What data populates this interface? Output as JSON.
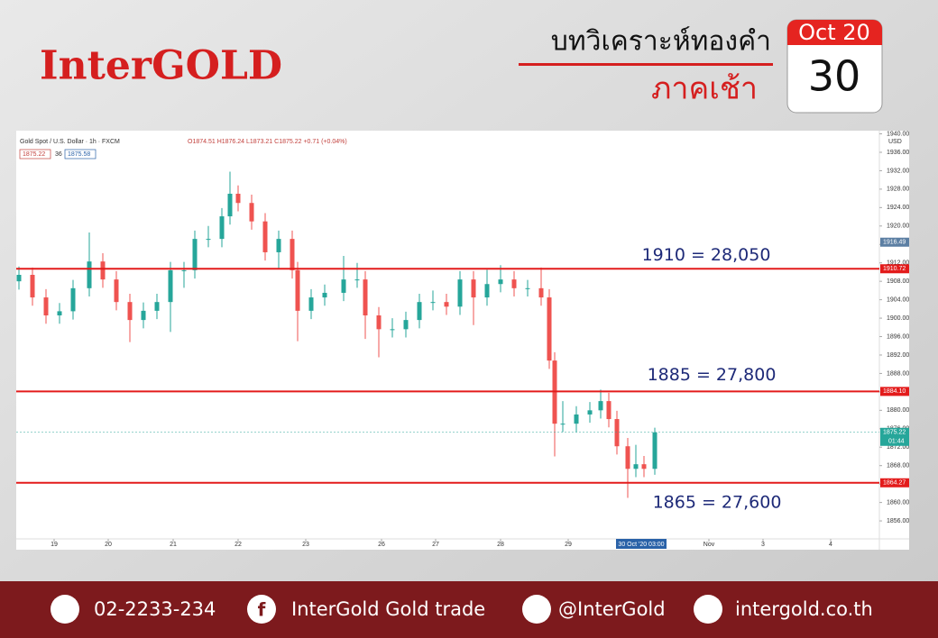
{
  "header": {
    "logo": "InterGOLD",
    "title": "บทวิเคราะห์ทองคำ",
    "subtitle": "ภาคเช้า",
    "calendar_month": "Oct 20",
    "calendar_day": "30"
  },
  "chart_data": {
    "type": "candlestick",
    "title": "Gold Spot / U.S. Dollar · 1h · FXCM",
    "ohlc_text": "O1874.51 H1876.24 L1873.21 C1875.22 +0.71 (+0.04%)",
    "badges": [
      "1875.22",
      "36",
      "1875.58"
    ],
    "currency": "USD",
    "up_color": "#26a69a",
    "down_color": "#ef5350",
    "x": [
      1,
      6,
      11,
      16,
      21,
      27,
      32,
      37,
      42,
      47,
      52,
      57,
      62,
      66,
      71,
      76,
      79,
      82,
      87,
      92,
      97,
      102,
      104,
      109,
      114,
      121,
      126,
      129,
      134,
      139,
      144,
      149,
      154,
      159,
      164,
      169,
      174,
      179,
      184,
      189,
      194,
      197,
      199,
      202,
      207,
      212,
      216,
      219,
      222,
      226,
      229,
      232,
      236
    ],
    "open": [
      1908.0,
      1909.4,
      1904.5,
      1900.6,
      1901.5,
      1906.5,
      1912.3,
      1908.4,
      1903.5,
      1899.6,
      1901.6,
      1903.5,
      1910.4,
      1910.4,
      1917.2,
      1917.2,
      1922.1,
      1927.0,
      1925.0,
      1921.0,
      1914.3,
      1917.2,
      1910.4,
      1901.6,
      1904.5,
      1905.5,
      1908.4,
      1908.4,
      1900.6,
      1897.6,
      1897.6,
      1899.6,
      1903.5,
      1903.5,
      1902.5,
      1908.4,
      1904.5,
      1907.4,
      1908.4,
      1906.5,
      1906.5,
      1904.5,
      1890.8,
      1877.1,
      1877.1,
      1879.1,
      1880.0,
      1882.0,
      1878.1,
      1872.2,
      1867.3,
      1868.3,
      1867.3
    ],
    "high": [
      1911.2,
      1911.0,
      1906.3,
      1903.3,
      1908.3,
      1918.6,
      1914.1,
      1910.2,
      1905.3,
      1903.4,
      1905.3,
      1912.2,
      1912.2,
      1919.0,
      1920.0,
      1923.9,
      1931.8,
      1928.8,
      1926.8,
      1922.8,
      1919.0,
      1919.0,
      1912.2,
      1906.3,
      1907.3,
      1913.5,
      1912.0,
      1910.2,
      1902.4,
      1900.0,
      1901.4,
      1905.3,
      1906.0,
      1905.3,
      1910.2,
      1910.2,
      1910.5,
      1911.5,
      1910.2,
      1908.3,
      1911.0,
      1906.3,
      1892.6,
      1882.0,
      1880.9,
      1881.8,
      1884.5,
      1883.8,
      1879.9,
      1874.0,
      1872.5,
      1870.1,
      1876.24
    ],
    "low": [
      1906.2,
      1902.7,
      1898.8,
      1898.8,
      1899.7,
      1904.7,
      1906.6,
      1901.7,
      1894.8,
      1897.8,
      1899.8,
      1897.0,
      1906.6,
      1908.6,
      1915.4,
      1915.4,
      1920.3,
      1923.2,
      1919.2,
      1912.5,
      1910.6,
      1908.6,
      1895.0,
      1899.8,
      1902.7,
      1903.7,
      1906.6,
      1895.5,
      1891.5,
      1895.8,
      1895.8,
      1897.8,
      1901.7,
      1900.7,
      1900.7,
      1898.5,
      1902.7,
      1905.6,
      1904.7,
      1904.7,
      1902.7,
      1889.0,
      1870.0,
      1875.3,
      1875.3,
      1877.3,
      1878.2,
      1876.3,
      1870.4,
      1861.0,
      1865.5,
      1865.5,
      1866.0
    ],
    "close": [
      1909.4,
      1904.5,
      1900.6,
      1901.5,
      1906.5,
      1912.3,
      1908.4,
      1903.5,
      1899.6,
      1901.6,
      1903.5,
      1910.4,
      1910.4,
      1917.2,
      1917.2,
      1922.1,
      1927.0,
      1925.0,
      1921.0,
      1914.3,
      1917.2,
      1910.4,
      1901.6,
      1904.5,
      1905.5,
      1908.4,
      1908.4,
      1900.6,
      1897.6,
      1897.6,
      1899.6,
      1903.5,
      1903.5,
      1902.5,
      1908.4,
      1904.5,
      1907.4,
      1908.4,
      1906.5,
      1906.5,
      1904.5,
      1890.8,
      1877.1,
      1877.1,
      1879.1,
      1880.0,
      1882.0,
      1878.1,
      1872.2,
      1867.3,
      1868.3,
      1867.3,
      1875.22
    ],
    "levels": [
      1910.72,
      {
        "value": 1884.1,
        "label": "1884.10"
      },
      1864.27
    ],
    "level_color": "#e31b1b",
    "level_notes": [
      "1910 = 28,050",
      "1885 = 27,800",
      "1865 = 27,600"
    ],
    "price_marks": [
      1916.49,
      1875.22
    ],
    "countdown": "01:44",
    "crosshair": {
      "value": 231,
      "label": "30 Oct '20  03:00"
    },
    "xlim": [
      0,
      319
    ],
    "xticks": [
      {
        "value": 14,
        "label": "19"
      },
      {
        "value": 34,
        "label": "20"
      },
      {
        "value": 58,
        "label": "21"
      },
      {
        "value": 82,
        "label": "22"
      },
      {
        "value": 107,
        "label": "23"
      },
      {
        "value": 135,
        "label": "26"
      },
      {
        "value": 155,
        "label": "27"
      },
      {
        "value": 179,
        "label": "28"
      },
      {
        "value": 204,
        "label": "29"
      },
      {
        "value": 256,
        "label": "Nov"
      },
      {
        "value": 276,
        "label": "3"
      },
      {
        "value": 301,
        "label": "4"
      }
    ],
    "ylim": [
      1852.1,
      1940.3
    ],
    "yticks": [
      {
        "value": 1856,
        "label": "1856.00"
      },
      {
        "value": 1860,
        "label": "1860.00"
      },
      {
        "value": 1864,
        "label": "1864.00"
      },
      {
        "value": 1868,
        "label": "1868.00"
      },
      {
        "value": 1872,
        "label": "1872.00"
      },
      {
        "value": 1876,
        "label": "1876.00"
      },
      {
        "value": 1880,
        "label": "1880.00"
      },
      {
        "value": 1884,
        "label": "1884.00"
      },
      {
        "value": 1888,
        "label": "1888.00"
      },
      {
        "value": 1892,
        "label": "1892.00"
      },
      {
        "value": 1896,
        "label": "1896.00"
      },
      {
        "value": 1900,
        "label": "1900.00"
      },
      {
        "value": 1904,
        "label": "1904.00"
      },
      {
        "value": 1908,
        "label": "1908.00"
      },
      {
        "value": 1912,
        "label": "1912.00"
      },
      {
        "value": 1916,
        "label": "1916.00"
      },
      {
        "value": 1920,
        "label": "1920.00"
      },
      {
        "value": 1924,
        "label": "1924.00"
      },
      {
        "value": 1928,
        "label": "1928.00"
      },
      {
        "value": 1932,
        "label": "1932.00"
      },
      {
        "value": 1936,
        "label": "1936.00"
      },
      {
        "value": 1940,
        "label": "1940.00"
      }
    ]
  },
  "footer": {
    "phone": "02-2233-234",
    "facebook": "InterGold Gold trade",
    "line": "@InterGold",
    "website": "intergold.co.th"
  }
}
